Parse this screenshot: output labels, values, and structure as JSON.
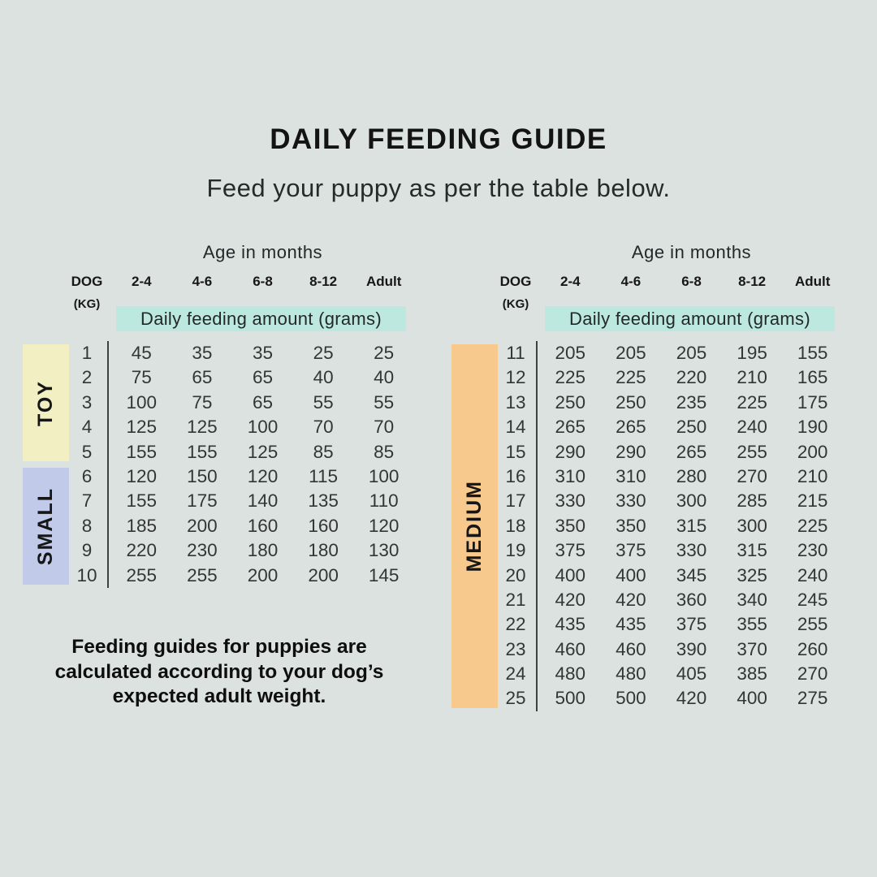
{
  "page": {
    "title": "DAILY FEEDING GUIDE",
    "subtitle": "Feed your puppy as per the table below.",
    "footnote": "Feeding guides for puppies are calculated according to your dog’s expected adult weight."
  },
  "colors": {
    "background": "#dbe2e0",
    "highlight_teal": "#bce8e0",
    "toy_yellow": "#f2efc2",
    "small_blue": "#c1cbe9",
    "medium_orange": "#f7c98d",
    "divider": "#3d4140"
  },
  "table_header": {
    "age_title": "Age in months",
    "dog_label": "DOG",
    "kg_label": "(KG)",
    "age_columns": [
      "2-4",
      "4-6",
      "6-8",
      "8-12",
      "Adult"
    ],
    "amount_label": "Daily feeding amount (grams)"
  },
  "tables": [
    {
      "name": "toy-small",
      "groups": [
        {
          "label": "TOY",
          "color_key": "toy_yellow",
          "rows": [
            {
              "kg": "1",
              "values": [
                "45",
                "35",
                "35",
                "25",
                "25"
              ]
            },
            {
              "kg": "2",
              "values": [
                "75",
                "65",
                "65",
                "40",
                "40"
              ]
            },
            {
              "kg": "3",
              "values": [
                "100",
                "75",
                "65",
                "55",
                "55"
              ]
            },
            {
              "kg": "4",
              "values": [
                "125",
                "125",
                "100",
                "70",
                "70"
              ]
            },
            {
              "kg": "5",
              "values": [
                "155",
                "155",
                "125",
                "85",
                "85"
              ]
            }
          ]
        },
        {
          "label": "SMALL",
          "color_key": "small_blue",
          "rows": [
            {
              "kg": "6",
              "values": [
                "120",
                "150",
                "120",
                "115",
                "100"
              ]
            },
            {
              "kg": "7",
              "values": [
                "155",
                "175",
                "140",
                "135",
                "110"
              ]
            },
            {
              "kg": "8",
              "values": [
                "185",
                "200",
                "160",
                "160",
                "120"
              ]
            },
            {
              "kg": "9",
              "values": [
                "220",
                "230",
                "180",
                "180",
                "130"
              ]
            },
            {
              "kg": "10",
              "values": [
                "255",
                "255",
                "200",
                "200",
                "145"
              ]
            }
          ]
        }
      ]
    },
    {
      "name": "medium",
      "groups": [
        {
          "label": "MEDIUM",
          "color_key": "medium_orange",
          "rows": [
            {
              "kg": "11",
              "values": [
                "205",
                "205",
                "205",
                "195",
                "155"
              ]
            },
            {
              "kg": "12",
              "values": [
                "225",
                "225",
                "220",
                "210",
                "165"
              ]
            },
            {
              "kg": "13",
              "values": [
                "250",
                "250",
                "235",
                "225",
                "175"
              ]
            },
            {
              "kg": "14",
              "values": [
                "265",
                "265",
                "250",
                "240",
                "190"
              ]
            },
            {
              "kg": "15",
              "values": [
                "290",
                "290",
                "265",
                "255",
                "200"
              ]
            },
            {
              "kg": "16",
              "values": [
                "310",
                "310",
                "280",
                "270",
                "210"
              ]
            },
            {
              "kg": "17",
              "values": [
                "330",
                "330",
                "300",
                "285",
                "215"
              ]
            },
            {
              "kg": "18",
              "values": [
                "350",
                "350",
                "315",
                "300",
                "225"
              ]
            },
            {
              "kg": "19",
              "values": [
                "375",
                "375",
                "330",
                "315",
                "230"
              ]
            },
            {
              "kg": "20",
              "values": [
                "400",
                "400",
                "345",
                "325",
                "240"
              ]
            },
            {
              "kg": "21",
              "values": [
                "420",
                "420",
                "360",
                "340",
                "245"
              ]
            },
            {
              "kg": "22",
              "values": [
                "435",
                "435",
                "375",
                "355",
                "255"
              ]
            },
            {
              "kg": "23",
              "values": [
                "460",
                "460",
                "390",
                "370",
                "260"
              ]
            },
            {
              "kg": "24",
              "values": [
                "480",
                "480",
                "405",
                "385",
                "270"
              ]
            },
            {
              "kg": "25",
              "values": [
                "500",
                "500",
                "420",
                "400",
                "275"
              ]
            }
          ]
        }
      ]
    }
  ]
}
